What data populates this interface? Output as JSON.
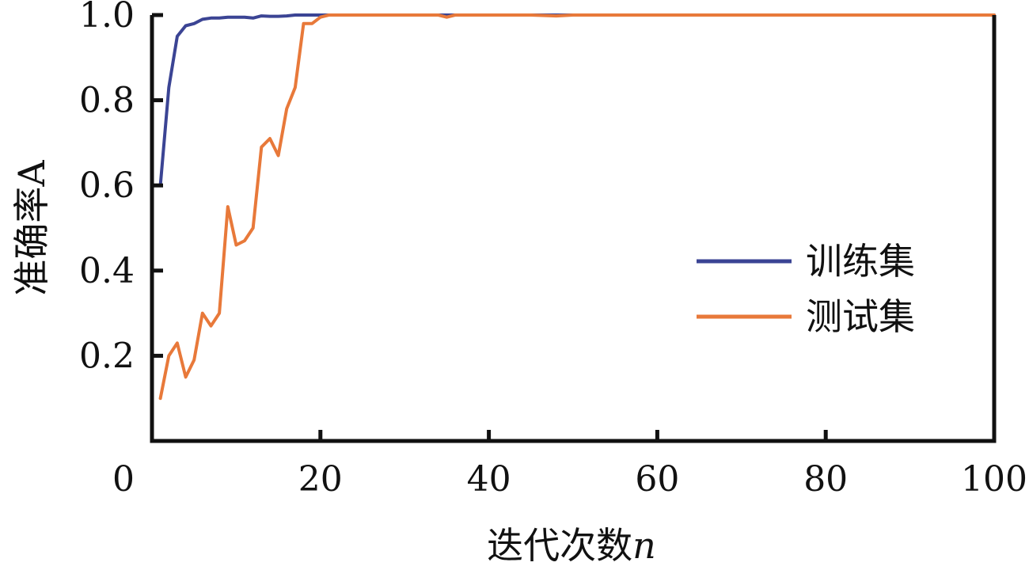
{
  "chart_data": {
    "type": "line",
    "title": "",
    "xlabel": "迭代次数",
    "xlabel_var": "n",
    "ylabel": "准确率",
    "ylabel_var": "A",
    "xlim": [
      0,
      100
    ],
    "ylim": [
      0,
      1.0
    ],
    "xticks": [
      "0",
      "20",
      "40",
      "60",
      "80",
      "100"
    ],
    "yticks": [
      "0.2",
      "0.4",
      "0.6",
      "0.8",
      "1.0"
    ],
    "grid": false,
    "legend_position": "right",
    "series": [
      {
        "name": "训练集",
        "color": "#3b4494",
        "x": [
          1,
          2,
          3,
          4,
          5,
          6,
          7,
          8,
          9,
          10,
          11,
          12,
          13,
          14,
          15,
          16,
          17,
          18,
          19,
          20,
          25,
          30,
          35,
          40,
          45,
          50,
          55,
          60,
          65,
          70,
          75,
          80,
          85,
          90,
          95,
          100
        ],
        "y": [
          0.6,
          0.83,
          0.95,
          0.975,
          0.98,
          0.99,
          0.993,
          0.993,
          0.995,
          0.995,
          0.995,
          0.993,
          0.998,
          0.997,
          0.997,
          0.998,
          1.0,
          1.0,
          1.0,
          1.0,
          1.0,
          1.0,
          1.0,
          1.0,
          1.0,
          1.0,
          1.0,
          1.0,
          1.0,
          1.0,
          1.0,
          1.0,
          1.0,
          1.0,
          1.0,
          1.0
        ]
      },
      {
        "name": "测试集",
        "color": "#e8793a",
        "x": [
          1,
          2,
          3,
          4,
          5,
          6,
          7,
          8,
          9,
          10,
          11,
          12,
          13,
          14,
          15,
          16,
          17,
          18,
          19,
          20,
          21,
          25,
          30,
          34,
          35,
          36,
          40,
          45,
          48,
          50,
          55,
          60,
          65,
          70,
          75,
          80,
          85,
          90,
          95,
          100
        ],
        "y": [
          0.1,
          0.2,
          0.23,
          0.15,
          0.19,
          0.3,
          0.27,
          0.3,
          0.55,
          0.46,
          0.47,
          0.5,
          0.69,
          0.71,
          0.67,
          0.78,
          0.83,
          0.98,
          0.98,
          0.995,
          1.0,
          1.0,
          1.0,
          1.0,
          0.995,
          1.0,
          1.0,
          1.0,
          0.998,
          1.0,
          1.0,
          1.0,
          1.0,
          1.0,
          1.0,
          1.0,
          1.0,
          1.0,
          1.0,
          1.0
        ]
      }
    ]
  }
}
